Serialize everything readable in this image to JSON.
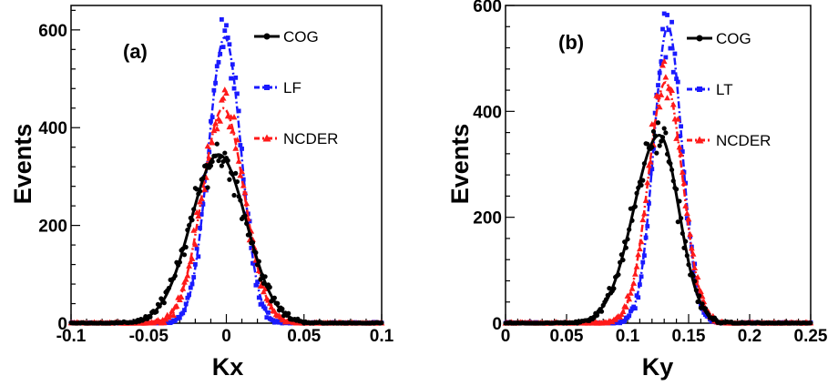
{
  "chart_data": [
    {
      "type": "scatter",
      "panel_label": "(a)",
      "xlabel": "Kx",
      "ylabel": "Events",
      "xlim": [
        -0.1,
        0.1
      ],
      "ylim": [
        0,
        650
      ],
      "x_ticks": [
        -0.1,
        -0.05,
        0,
        0.05,
        0.1
      ],
      "x_tick_labels": [
        "-0.1",
        "-0.05",
        "0",
        "0.05",
        "0.1"
      ],
      "y_ticks": [
        0,
        200,
        400,
        600
      ],
      "y_tick_labels": [
        "0",
        "200",
        "400",
        "600"
      ],
      "grid": false,
      "legend_position": "top-right",
      "series": [
        {
          "name": "COG",
          "color": "#000000",
          "marker": "circle",
          "style": "solid",
          "peak_x": -0.005,
          "peak": 345,
          "sigma": 0.0178
        },
        {
          "name": "LF",
          "color": "#1a1aff",
          "marker": "square",
          "style": "dash-dot",
          "peak_x": -0.001,
          "peak": 585,
          "sigma": 0.0105
        },
        {
          "name": "NCDER",
          "color": "#ff1a1a",
          "marker": "triangle",
          "style": "dash-dot",
          "peak_x": -0.002,
          "peak": 440,
          "sigma": 0.0135
        }
      ]
    },
    {
      "type": "scatter",
      "panel_label": "(b)",
      "xlabel": "Ky",
      "ylabel": "Events",
      "xlim": [
        0,
        0.25
      ],
      "ylim": [
        0,
        600
      ],
      "x_ticks": [
        0,
        0.05,
        0.1,
        0.15,
        0.2,
        0.25
      ],
      "x_tick_labels": [
        "0",
        "0.05",
        "0.1",
        "0.15",
        "0.2",
        "0.25"
      ],
      "y_ticks": [
        0,
        200,
        400,
        600
      ],
      "y_tick_labels": [
        "0",
        "200",
        "400",
        "600"
      ],
      "grid": false,
      "legend_position": "top-right",
      "series": [
        {
          "name": "COG",
          "color": "#000000",
          "marker": "circle",
          "style": "solid",
          "peak_x": 0.126,
          "peak": 355,
          "sigma_left": 0.021,
          "sigma_right": 0.016
        },
        {
          "name": "LT",
          "color": "#1a1aff",
          "marker": "square",
          "style": "dash-dot",
          "peak_x": 0.133,
          "peak": 560,
          "sigma_left": 0.0115,
          "sigma_right": 0.0115
        },
        {
          "name": "NCDER",
          "color": "#ff1a1a",
          "marker": "triangle",
          "style": "dash-dot",
          "peak_x": 0.131,
          "peak": 455,
          "sigma_left": 0.014,
          "sigma_right": 0.014
        }
      ]
    }
  ]
}
